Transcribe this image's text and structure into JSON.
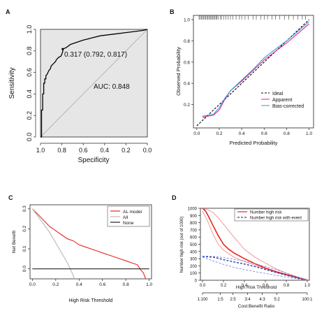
{
  "chart_data": [
    {
      "panel": "A",
      "type": "line",
      "xlabel": "Specificity",
      "ylabel": "Sensitivity",
      "x_reversed": true,
      "xlim": [
        1.0,
        0.0
      ],
      "ylim": [
        0.0,
        1.0
      ],
      "xticks": [
        "1.0",
        "0.8",
        "0.6",
        "0.4",
        "0.2",
        "0.0"
      ],
      "yticks": [
        "0.0",
        "0.2",
        "0.4",
        "0.6",
        "0.8",
        "1.0"
      ],
      "xtick_values": [
        1.0,
        0.8,
        0.6,
        0.4,
        0.2,
        0.0
      ],
      "ytick_values": [
        0.0,
        0.2,
        0.4,
        0.6,
        0.8,
        1.0
      ],
      "background": "#e6e6e6",
      "series": [
        {
          "color": "#000000",
          "x": [
            1.0,
            0.99,
            0.99,
            0.98,
            0.98,
            0.97,
            0.97,
            0.96,
            0.96,
            0.95,
            0.95,
            0.94,
            0.93,
            0.92,
            0.91,
            0.9,
            0.89,
            0.87,
            0.86,
            0.85,
            0.84,
            0.83,
            0.81,
            0.8,
            0.79,
            0.792,
            0.76,
            0.72,
            0.66,
            0.6,
            0.52,
            0.44,
            0.36,
            0.28,
            0.2,
            0.12,
            0.04,
            0.0
          ],
          "y": [
            0.0,
            0.0,
            0.25,
            0.25,
            0.4,
            0.4,
            0.5,
            0.5,
            0.54,
            0.54,
            0.57,
            0.58,
            0.6,
            0.62,
            0.63,
            0.66,
            0.67,
            0.69,
            0.7,
            0.72,
            0.73,
            0.74,
            0.75,
            0.77,
            0.8,
            0.817,
            0.83,
            0.86,
            0.88,
            0.9,
            0.92,
            0.94,
            0.95,
            0.96,
            0.97,
            0.98,
            0.99,
            1.0
          ]
        }
      ],
      "annotations": [
        {
          "text": "0.317 (0.792, 0.817)",
          "x": 0.792,
          "y": 0.817
        },
        {
          "text": "AUC: 0.848"
        }
      ]
    },
    {
      "panel": "B",
      "type": "line",
      "xlabel": "Predicted Probability",
      "ylabel": "Observed Probability",
      "xlim": [
        0.0,
        1.0
      ],
      "ylim": [
        0.0,
        1.0
      ],
      "xticks": [
        "0.0",
        "0.2",
        "0.4",
        "0.6",
        "0.8",
        "1.0"
      ],
      "yticks": [
        "0.2",
        "0.4",
        "0.6",
        "0.8",
        "1.0"
      ],
      "xtick_values": [
        0.0,
        0.2,
        0.4,
        0.6,
        0.8,
        1.0
      ],
      "ytick_values": [
        0.2,
        0.4,
        0.6,
        0.8,
        1.0
      ],
      "rug": [
        0.02,
        0.03,
        0.04,
        0.05,
        0.06,
        0.07,
        0.08,
        0.09,
        0.1,
        0.11,
        0.12,
        0.13,
        0.14,
        0.15,
        0.16,
        0.17,
        0.18,
        0.19,
        0.21,
        0.22,
        0.24,
        0.26,
        0.28,
        0.3,
        0.32,
        0.35,
        0.38,
        0.4,
        0.43,
        0.46,
        0.5,
        0.53,
        0.57,
        0.6,
        0.63,
        0.67,
        0.7,
        0.74,
        0.78,
        0.82,
        0.86,
        0.9,
        0.94,
        0.97
      ],
      "legend": [
        "Ideal",
        "Apparent",
        "Bias-corrected"
      ],
      "series": [
        {
          "name": "Ideal",
          "color": "#000000",
          "dash": true,
          "x": [
            0.0,
            1.0
          ],
          "y": [
            0.0,
            1.0
          ]
        },
        {
          "name": "Apparent",
          "color": "#e8208f",
          "x": [
            0.05,
            0.15,
            0.2,
            0.25,
            0.3,
            0.4,
            0.5,
            0.6,
            0.7,
            0.8,
            0.9,
            1.0
          ],
          "y": [
            0.08,
            0.1,
            0.15,
            0.25,
            0.33,
            0.42,
            0.52,
            0.62,
            0.7,
            0.78,
            0.87,
            0.96
          ]
        },
        {
          "name": "Bias-corrected",
          "color": "#2aa0d8",
          "x": [
            0.05,
            0.15,
            0.2,
            0.25,
            0.3,
            0.4,
            0.5,
            0.6,
            0.7,
            0.8,
            0.9,
            1.0
          ],
          "y": [
            0.09,
            0.11,
            0.17,
            0.26,
            0.33,
            0.43,
            0.53,
            0.64,
            0.72,
            0.8,
            0.89,
            0.98
          ]
        }
      ]
    },
    {
      "panel": "C",
      "type": "line",
      "xlabel": "High Risk Threshold",
      "ylabel": "Net Benefit",
      "xlim": [
        0.0,
        1.0
      ],
      "ylim": [
        -0.05,
        0.3
      ],
      "xticks": [
        "0.0",
        "0.2",
        "0.4",
        "0.6",
        "0.8",
        "1.0"
      ],
      "yticks": [
        "0.0",
        "0.1",
        "0.2",
        "0.3"
      ],
      "xtick_values": [
        0.0,
        0.2,
        0.4,
        0.6,
        0.8,
        1.0
      ],
      "ytick_values": [
        0.0,
        0.1,
        0.2,
        0.3
      ],
      "legend": [
        "AL model",
        "All",
        "None"
      ],
      "series": [
        {
          "name": "AL model",
          "color": "#e8251f",
          "x": [
            0.0,
            0.05,
            0.1,
            0.15,
            0.2,
            0.25,
            0.3,
            0.35,
            0.4,
            0.45,
            0.5,
            0.55,
            0.6,
            0.65,
            0.7,
            0.75,
            0.8,
            0.85,
            0.9,
            0.92,
            0.95,
            0.97
          ],
          "y": [
            0.3,
            0.27,
            0.24,
            0.21,
            0.19,
            0.17,
            0.15,
            0.14,
            0.12,
            0.11,
            0.1,
            0.09,
            0.08,
            0.07,
            0.06,
            0.05,
            0.04,
            0.03,
            0.02,
            0.0,
            -0.02,
            -0.05
          ]
        },
        {
          "name": "All",
          "color": "#b8b8b8",
          "x": [
            0.0,
            0.05,
            0.1,
            0.15,
            0.2,
            0.25,
            0.3,
            0.34,
            0.36
          ],
          "y": [
            0.3,
            0.26,
            0.22,
            0.18,
            0.13,
            0.08,
            0.03,
            -0.02,
            -0.05
          ]
        },
        {
          "name": "None",
          "color": "#222222",
          "x": [
            0.0,
            1.0
          ],
          "y": [
            0.0,
            0.0
          ]
        }
      ]
    },
    {
      "panel": "D",
      "type": "line",
      "xlabel": "High Risk Threshold",
      "x2label": "Cost:Benefit Ratio",
      "ylabel": "Number high risk (out of 1000)",
      "xlim": [
        0.0,
        1.0
      ],
      "ylim": [
        0,
        1000
      ],
      "xticks": [
        "0.0",
        "0.2",
        "0.4",
        "0.6",
        "0.8",
        "1.0"
      ],
      "xtick_values": [
        0.0,
        0.2,
        0.4,
        0.6,
        0.8,
        1.0
      ],
      "x2ticks": [
        "1:100",
        "1:5",
        "2:5",
        "3:4",
        "4:3",
        "5:2",
        "100:1"
      ],
      "x2tick_values": [
        0.0,
        0.17,
        0.29,
        0.43,
        0.57,
        0.71,
        1.0
      ],
      "yticks": [
        "0",
        "100",
        "200",
        "300",
        "400",
        "500",
        "600",
        "700",
        "800",
        "900",
        "1000"
      ],
      "ytick_values": [
        0,
        100,
        200,
        300,
        400,
        500,
        600,
        700,
        800,
        900,
        1000
      ],
      "legend": [
        "Number high risk",
        "Number high risk with event"
      ],
      "series": [
        {
          "name": "Number high risk",
          "color": "#e8251f",
          "width": 1.6,
          "x": [
            0.0,
            0.03,
            0.06,
            0.1,
            0.15,
            0.2,
            0.25,
            0.3,
            0.4,
            0.5,
            0.6,
            0.7,
            0.8,
            0.9,
            1.0
          ],
          "y": [
            1000,
            960,
            880,
            760,
            620,
            500,
            430,
            380,
            300,
            230,
            170,
            120,
            80,
            40,
            0
          ]
        },
        {
          "name": "",
          "color": "#f08080",
          "width": 0.8,
          "x": [
            0.0,
            0.05,
            0.1,
            0.15,
            0.2,
            0.3,
            0.4,
            0.5,
            0.6,
            0.7,
            0.8,
            0.9,
            1.0
          ],
          "y": [
            1000,
            980,
            940,
            870,
            780,
            600,
            430,
            320,
            240,
            160,
            100,
            50,
            10
          ]
        },
        {
          "name": "",
          "color": "#f08080",
          "width": 0.8,
          "x": [
            0.0,
            0.05,
            0.1,
            0.15,
            0.2,
            0.3,
            0.4,
            0.5,
            0.6,
            0.7,
            0.8,
            0.9,
            1.0
          ],
          "y": [
            960,
            820,
            640,
            500,
            420,
            320,
            260,
            210,
            160,
            110,
            70,
            30,
            0
          ]
        },
        {
          "name": "Number high risk with event",
          "color": "#2b3ea8",
          "width": 1.4,
          "dash": true,
          "x": [
            0.0,
            0.05,
            0.1,
            0.15,
            0.2,
            0.3,
            0.4,
            0.5,
            0.6,
            0.7,
            0.8,
            0.9,
            1.0
          ],
          "y": [
            330,
            325,
            320,
            305,
            285,
            255,
            225,
            190,
            150,
            110,
            70,
            35,
            0
          ]
        },
        {
          "name": "",
          "color": "#6a7fd6",
          "width": 0.8,
          "dash": true,
          "x": [
            0.0,
            0.05,
            0.1,
            0.15,
            0.2,
            0.3,
            0.4,
            0.5,
            0.6,
            0.7,
            0.8,
            0.9,
            1.0
          ],
          "y": [
            335,
            335,
            330,
            325,
            315,
            290,
            265,
            230,
            190,
            150,
            100,
            50,
            5
          ]
        },
        {
          "name": "",
          "color": "#6a7fd6",
          "width": 0.8,
          "dash": true,
          "x": [
            0.0,
            0.05,
            0.1,
            0.15,
            0.2,
            0.3,
            0.4,
            0.5,
            0.6,
            0.7,
            0.8,
            0.9,
            1.0
          ],
          "y": [
            320,
            295,
            270,
            245,
            220,
            180,
            150,
            120,
            95,
            70,
            45,
            20,
            0
          ]
        }
      ]
    }
  ]
}
